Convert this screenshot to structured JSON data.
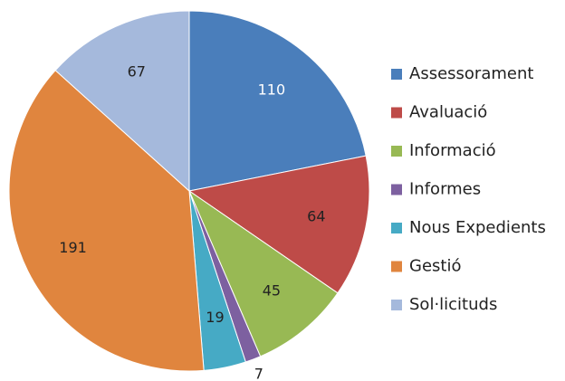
{
  "chart_data": {
    "type": "pie",
    "categories": [
      "Assessorament",
      "Avaluació",
      "Informació",
      "Informes",
      "Nous Expedients",
      "Gestió",
      "Sol·licituds"
    ],
    "values": [
      110,
      64,
      45,
      7,
      19,
      191,
      67
    ],
    "colors": [
      "#4a7ebb",
      "#be4b48",
      "#98b954",
      "#7d60a0",
      "#46aac5",
      "#e0853e",
      "#a5b9dc"
    ],
    "legend": "right"
  }
}
